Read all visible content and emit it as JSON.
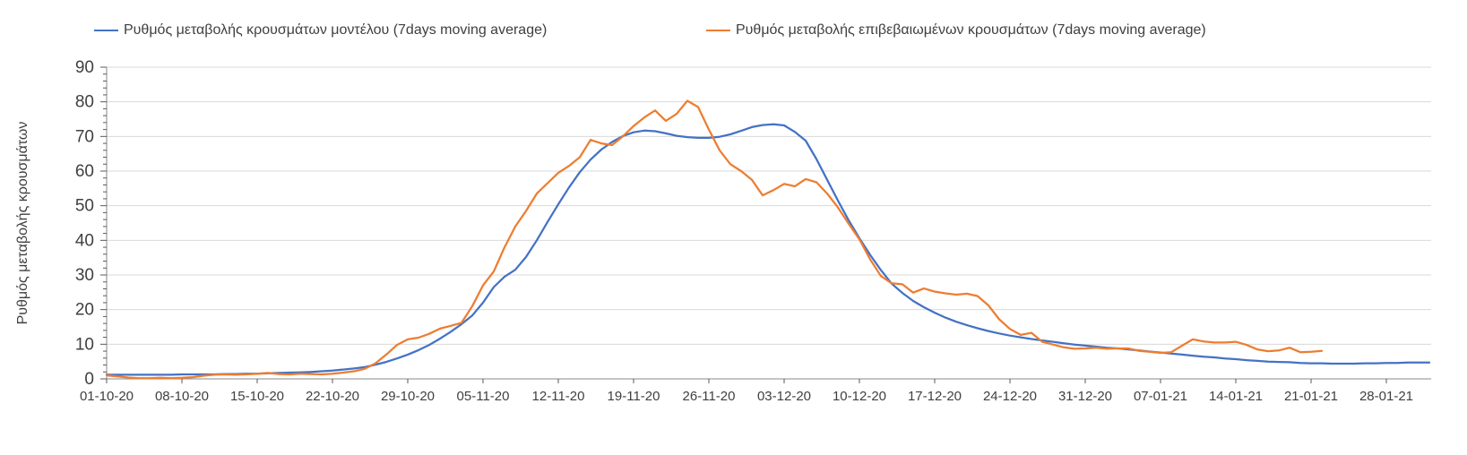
{
  "chart_data": {
    "type": "line",
    "title": "",
    "ylabel": "Ρυθμός μεταβολής κρουσμάτων",
    "xlabel": "",
    "ylim": [
      0,
      90
    ],
    "ytick_step": 10,
    "yticks": [
      0,
      10,
      20,
      30,
      40,
      50,
      60,
      70,
      80,
      90
    ],
    "grid": "horizontal-only",
    "legend_position": "top",
    "x_tick_labels": [
      "01-10-20",
      "08-10-20",
      "15-10-20",
      "22-10-20",
      "29-10-20",
      "05-11-20",
      "12-11-20",
      "19-11-20",
      "26-11-20",
      "03-12-20",
      "10-12-20",
      "17-12-20",
      "24-12-20",
      "31-12-20",
      "07-01-21",
      "14-01-21",
      "21-01-21",
      "28-01-21"
    ],
    "days_between_ticks": 7,
    "colors": {
      "model_series": "#4472C4",
      "confirmed_series": "#ED7D31",
      "gridline": "#D9D9D9",
      "axis_line": "#898989",
      "tick_mark": "#595959",
      "tick_label": "#404040"
    },
    "series": [
      {
        "name": "Ρυθμός μεταβολής κρουσμάτων μοντέλου (7days moving average)",
        "color": "#4472C4",
        "start_day": 0,
        "values": [
          1.2,
          1.2,
          1.2,
          1.2,
          1.2,
          1.2,
          1.2,
          1.3,
          1.3,
          1.3,
          1.3,
          1.4,
          1.4,
          1.5,
          1.5,
          1.6,
          1.7,
          1.8,
          1.9,
          2.0,
          2.2,
          2.4,
          2.7,
          3.0,
          3.4,
          4.1,
          4.9,
          5.9,
          7.0,
          8.3,
          9.8,
          11.6,
          13.6,
          15.8,
          18.3,
          22.0,
          26.5,
          29.5,
          31.5,
          35.2,
          40.0,
          45.3,
          50.4,
          55.3,
          59.7,
          63.3,
          66.2,
          68.4,
          70.1,
          71.2,
          71.7,
          71.5,
          70.9,
          70.2,
          69.8,
          69.6,
          69.6,
          69.9,
          70.6,
          71.6,
          72.7,
          73.3,
          73.5,
          73.2,
          71.3,
          68.8,
          63.5,
          57.5,
          51.5,
          45.8,
          40.6,
          35.8,
          31.4,
          27.5,
          24.8,
          22.5,
          20.7,
          19.1,
          17.7,
          16.5,
          15.5,
          14.6,
          13.8,
          13.1,
          12.5,
          12.0,
          11.5,
          11.1,
          10.7,
          10.3,
          9.9,
          9.6,
          9.3,
          9.0,
          8.8,
          8.5,
          8.2,
          7.9,
          7.6,
          7.3,
          7.0,
          6.7,
          6.4,
          6.2,
          5.9,
          5.7,
          5.4,
          5.2,
          5.0,
          4.9,
          4.8,
          4.6,
          4.5,
          4.5,
          4.4,
          4.4,
          4.4,
          4.5,
          4.5,
          4.6,
          4.6,
          4.7,
          4.7,
          4.7
        ]
      },
      {
        "name": "Ρυθμός μεταβολής επιβεβαιωμένων κρουσμάτων (7days moving average)",
        "color": "#ED7D31",
        "start_day": 0,
        "values": [
          1.0,
          0.7,
          0.4,
          0.2,
          0.2,
          0.3,
          0.2,
          0.3,
          0.5,
          0.9,
          1.2,
          1.3,
          1.2,
          1.3,
          1.5,
          1.7,
          1.4,
          1.3,
          1.5,
          1.4,
          1.3,
          1.5,
          1.8,
          2.2,
          2.9,
          4.5,
          7.0,
          9.8,
          11.4,
          11.9,
          13.0,
          14.5,
          15.3,
          16.2,
          21.0,
          27.0,
          31.0,
          38.0,
          44.0,
          48.5,
          53.5,
          56.5,
          59.5,
          61.5,
          64.0,
          69.0,
          68.0,
          67.5,
          70.0,
          73.0,
          75.5,
          77.5,
          74.5,
          76.5,
          80.3,
          78.5,
          72.0,
          66.0,
          62.0,
          60.0,
          57.5,
          53.0,
          54.5,
          56.3,
          55.6,
          57.7,
          56.8,
          53.5,
          49.5,
          44.8,
          40.3,
          34.5,
          29.7,
          27.6,
          27.3,
          24.9,
          26.1,
          25.2,
          24.7,
          24.3,
          24.6,
          23.9,
          21.2,
          17.2,
          14.4,
          12.7,
          13.3,
          10.7,
          9.9,
          9.1,
          8.7,
          8.8,
          9.0,
          8.7,
          8.8,
          8.8,
          8.1,
          7.8,
          7.5,
          7.7,
          9.6,
          11.4,
          10.8,
          10.5,
          10.5,
          10.7,
          9.8,
          8.5,
          8.0,
          8.2,
          9.0,
          7.7,
          7.8,
          8.1
        ]
      }
    ]
  }
}
